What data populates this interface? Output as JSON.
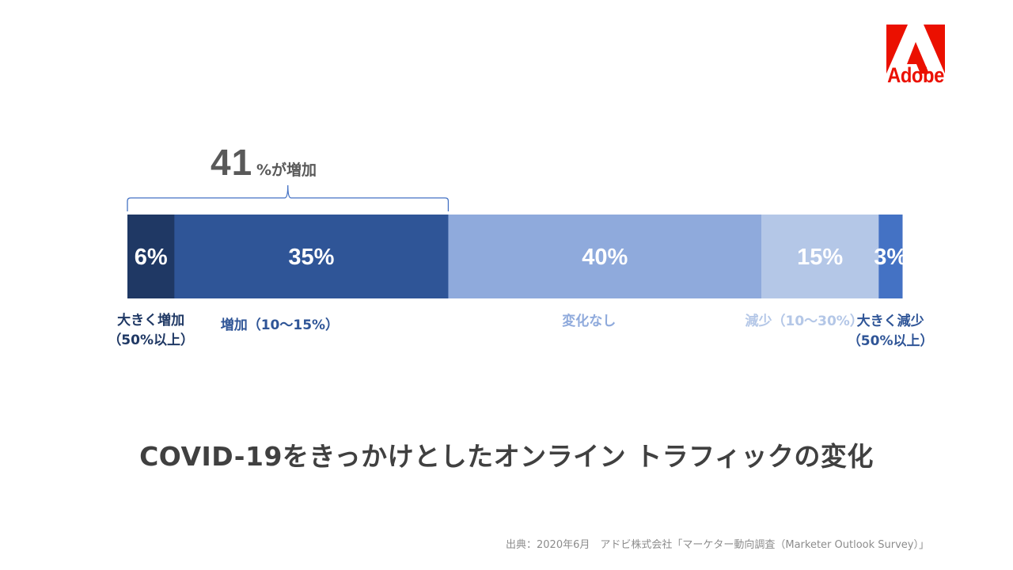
{
  "brand": {
    "logo_text": "Adobe",
    "logo_color": "#eb1000"
  },
  "annotation": {
    "number": "41",
    "text": "%が増加"
  },
  "chart_data": {
    "type": "bar",
    "orientation": "horizontal-stacked",
    "title": "COVID-19をきっかけとしたオンライン トラフィックの変化",
    "series": [
      {
        "name": "大きく増加（50%以上）",
        "value": 6,
        "value_label": "6%",
        "label_lines": [
          "大きく増加",
          "（50%以上）"
        ],
        "color": "#1f3864",
        "label_color": "#1f3864"
      },
      {
        "name": "増加（10〜15%）",
        "value": 35,
        "value_label": "35%",
        "label_lines": [
          "増加（10〜15%）"
        ],
        "color": "#2f5597",
        "label_color": "#2f5597"
      },
      {
        "name": "変化なし",
        "value": 40,
        "value_label": "40%",
        "label_lines": [
          "変化なし"
        ],
        "color": "#8faadc",
        "label_color": "#8faadc"
      },
      {
        "name": "減少（10〜30%）",
        "value": 15,
        "value_label": "15%",
        "label_lines": [
          "減少（10〜30%）"
        ],
        "color": "#b4c7e7",
        "label_color": "#b4c7e7"
      },
      {
        "name": "大きく減少（50%以上）",
        "value": 3,
        "value_label": "3%",
        "label_lines": [
          "大きく減少",
          "（50%以上）"
        ],
        "color": "#4472c4",
        "label_color": "#2f5597"
      }
    ],
    "bracket": {
      "covers_series": [
        0,
        1
      ],
      "label": "41%が増加"
    }
  },
  "source": "出典：2020年6月　アドビ株式会社「マーケター動向調査（Marketer Outlook Survey）」"
}
